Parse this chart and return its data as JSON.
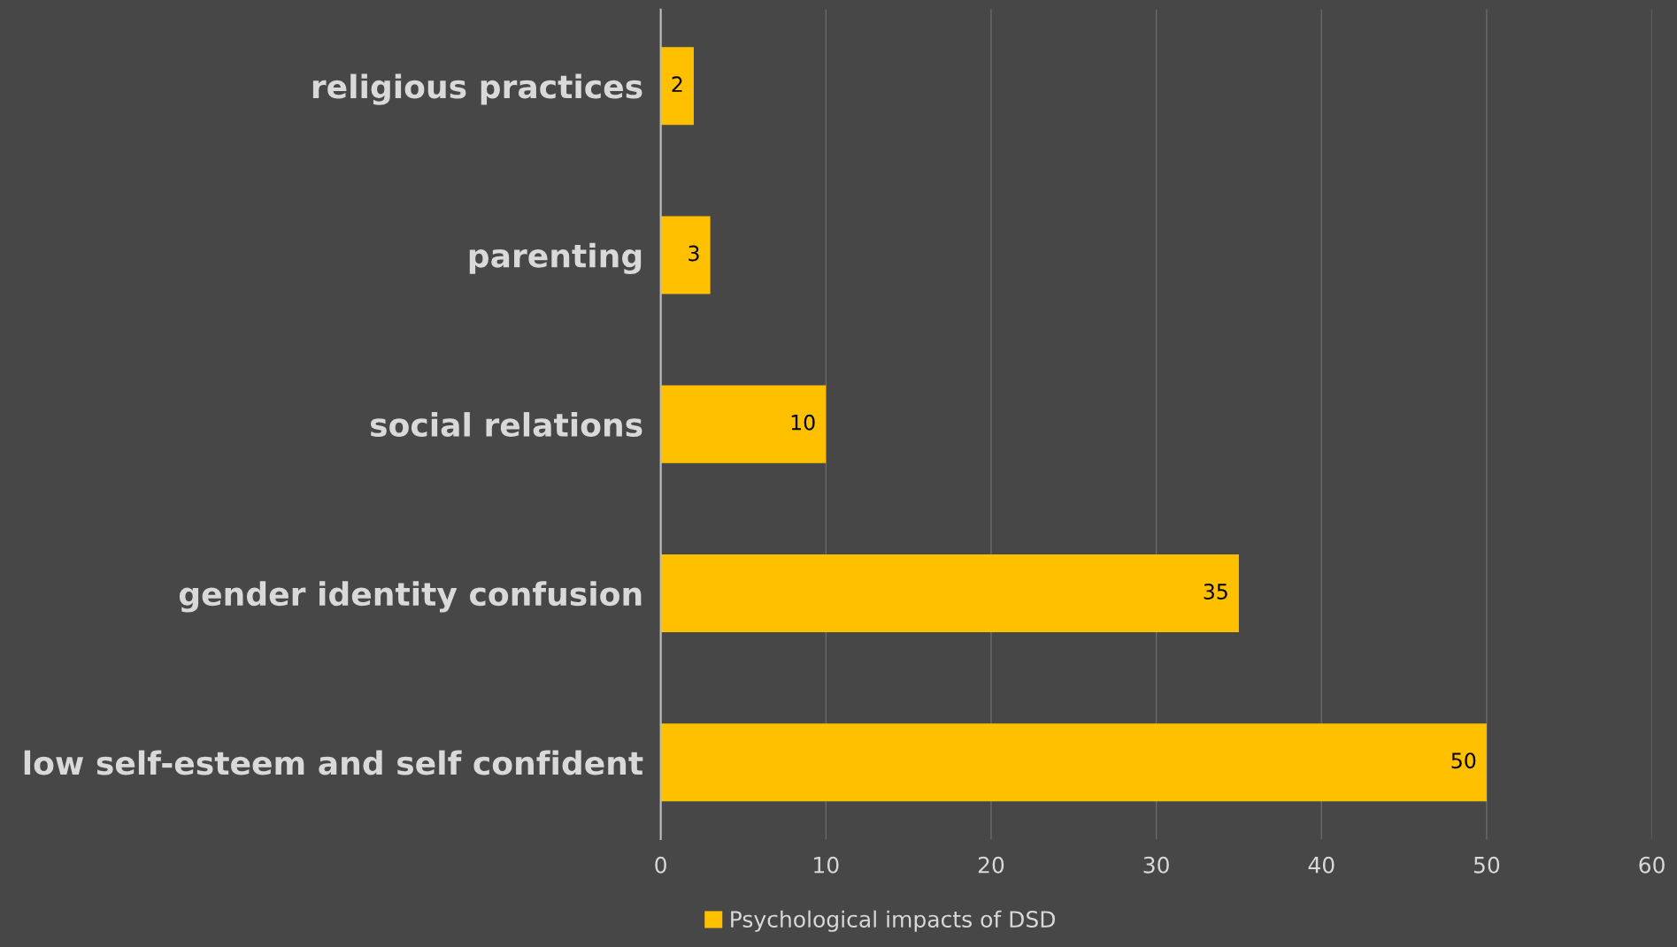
{
  "chart_data": {
    "type": "bar",
    "orientation": "horizontal",
    "categories": [
      "religious practices",
      "parenting",
      "social relations",
      "gender identity confusion",
      "low self-esteem and self confident"
    ],
    "series": [
      {
        "name": "Psychological impacts of DSD",
        "color": "#ffc000",
        "values": [
          2,
          3,
          10,
          35,
          50
        ]
      }
    ],
    "xlim": [
      0,
      60
    ],
    "xticks": [
      0,
      10,
      20,
      30,
      40,
      50,
      60
    ],
    "grid": "x",
    "legend": "bottom",
    "data_labels": true
  }
}
